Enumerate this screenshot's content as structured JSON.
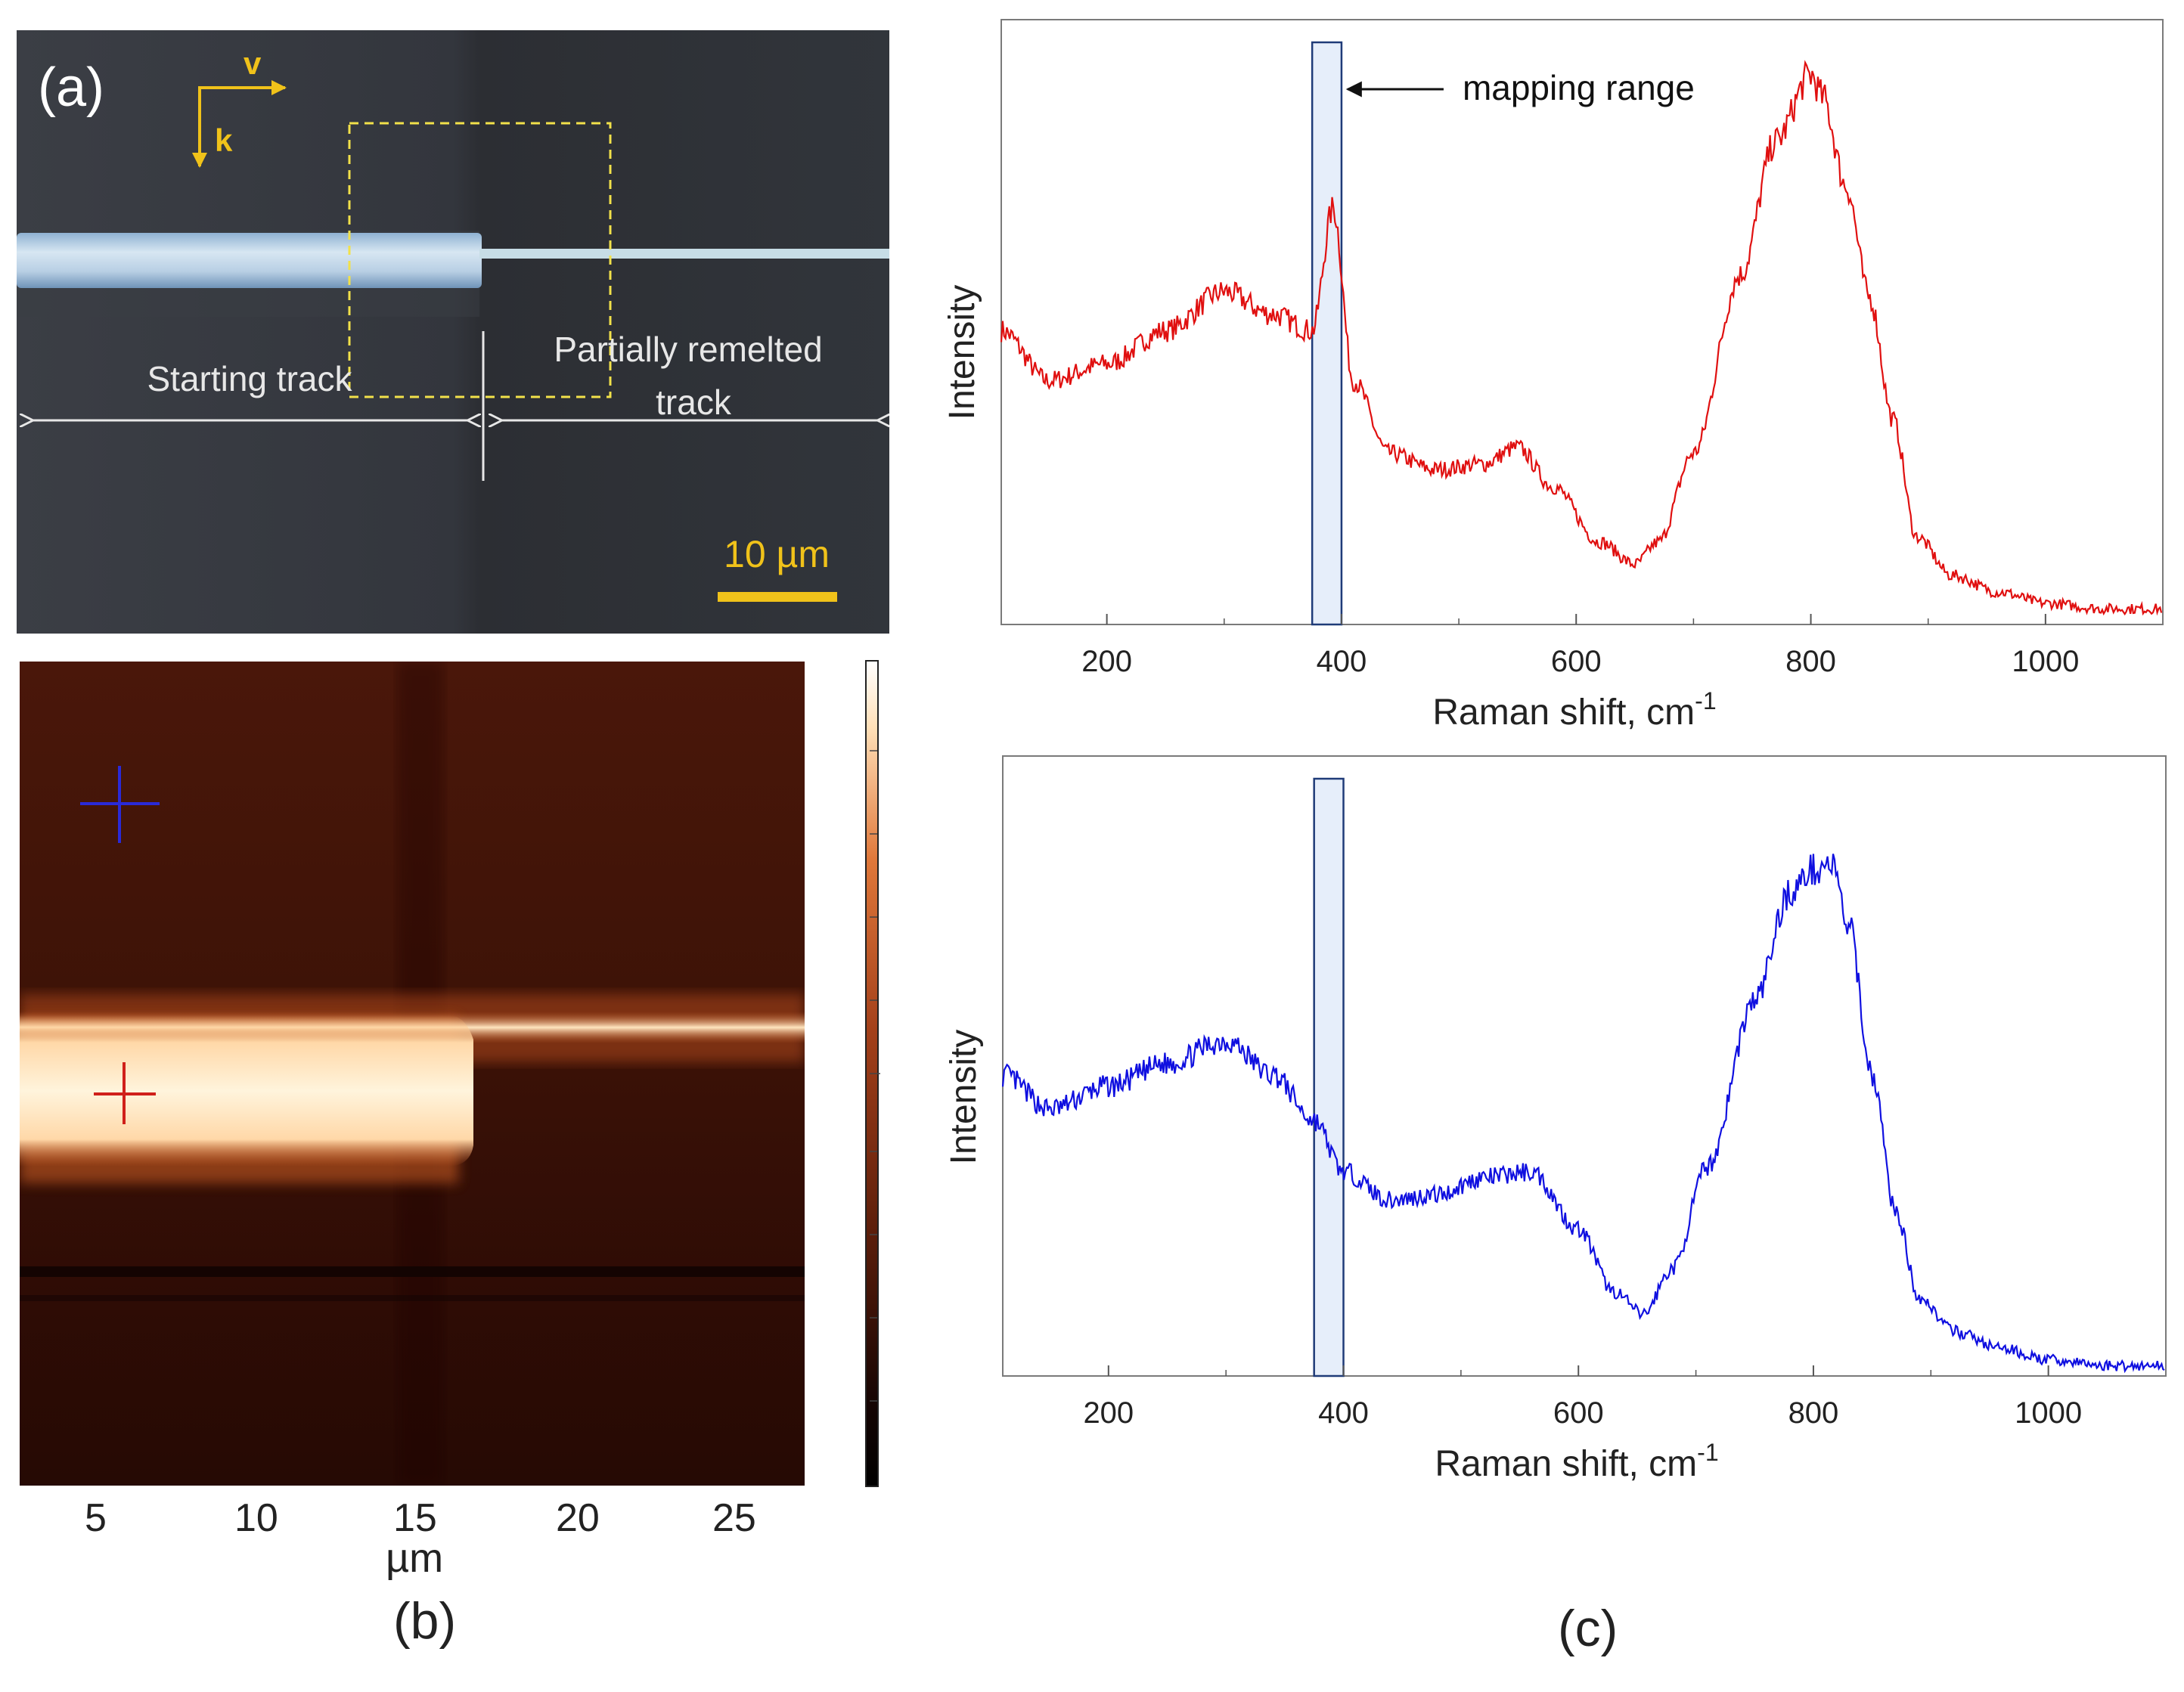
{
  "panel_a": {
    "label": "(a)",
    "arrow_v": "v",
    "arrow_k": "k",
    "starting_track": "Starting track",
    "remelted_line1": "Partially remelted",
    "remelted_line2": "track",
    "scale_bar": "10 µm",
    "colors": {
      "background": "#34373d",
      "track": "#bcd3e6",
      "dashed_box": "#f2e14a",
      "annotation": "#e7e7e7",
      "arrow": "#f0c21a"
    }
  },
  "panel_b": {
    "label": "(b)",
    "xticks": [
      "5",
      "10",
      "15",
      "20",
      "25"
    ],
    "xlabel": "µm",
    "colors": {
      "map_dark": "#3a1106",
      "map_bright": "#fff3d8",
      "marker_blue": "#2a2ad8",
      "marker_red": "#d0201a"
    }
  },
  "panel_c": {
    "label": "(c)",
    "annotation": "mapping range"
  },
  "chart_data": [
    {
      "type": "line",
      "title": "",
      "xlabel": "Raman shift, cm",
      "xlabel_superscript": "-1",
      "ylabel": "Intensity",
      "xlim": [
        110,
        1100
      ],
      "ylim": [
        0,
        1
      ],
      "xticks": [
        200,
        400,
        600,
        800,
        1000
      ],
      "color": "#e01010",
      "highlight_range": [
        375,
        400
      ],
      "series": [
        {
          "name": "red spectrum (starting track)",
          "x": [
            110,
            150,
            200,
            250,
            300,
            340,
            375,
            393,
            410,
            440,
            480,
            520,
            550,
            580,
            620,
            650,
            670,
            700,
            740,
            770,
            800,
            810,
            830,
            850,
            870,
            890,
            920,
            960,
            1000,
            1050,
            1100
          ],
          "y": [
            0.52,
            0.43,
            0.46,
            0.52,
            0.59,
            0.55,
            0.52,
            0.74,
            0.43,
            0.3,
            0.27,
            0.28,
            0.31,
            0.24,
            0.14,
            0.1,
            0.14,
            0.3,
            0.62,
            0.86,
            0.98,
            0.94,
            0.78,
            0.58,
            0.36,
            0.15,
            0.08,
            0.05,
            0.03,
            0.02,
            0.02
          ]
        }
      ]
    },
    {
      "type": "line",
      "title": "",
      "xlabel": "Raman shift, cm",
      "xlabel_superscript": "-1",
      "ylabel": "Intensity",
      "xlim": [
        110,
        1100
      ],
      "ylim": [
        0,
        1
      ],
      "xticks": [
        200,
        400,
        600,
        800,
        1000
      ],
      "color": "#1010e0",
      "highlight_range": [
        375,
        400
      ],
      "series": [
        {
          "name": "blue spectrum (remelted track)",
          "x": [
            110,
            150,
            200,
            250,
            300,
            340,
            375,
            400,
            440,
            480,
            520,
            560,
            600,
            630,
            655,
            680,
            710,
            750,
            780,
            800,
            815,
            830,
            850,
            870,
            890,
            920,
            960,
            1000,
            1050,
            1100
          ],
          "y": [
            0.52,
            0.46,
            0.5,
            0.54,
            0.58,
            0.52,
            0.44,
            0.35,
            0.3,
            0.31,
            0.34,
            0.35,
            0.25,
            0.14,
            0.1,
            0.18,
            0.36,
            0.65,
            0.84,
            0.88,
            0.89,
            0.78,
            0.52,
            0.28,
            0.13,
            0.07,
            0.04,
            0.02,
            0.01,
            0.01
          ]
        }
      ]
    }
  ]
}
